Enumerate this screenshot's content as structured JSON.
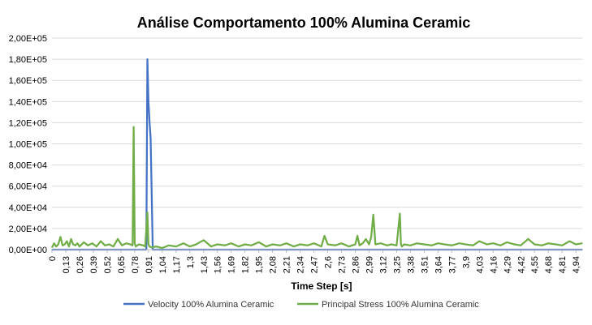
{
  "chart_data": {
    "type": "line",
    "title": "Análise Comportamento 100% Alumina Ceramic",
    "xlabel": "Time Step [s]",
    "ylabel": "",
    "ylim": [
      0,
      200000
    ],
    "xlim": [
      0,
      5.0
    ],
    "yticks": [
      "0,00E+00",
      "2,00E+04",
      "4,00E+04",
      "6,00E+04",
      "8,00E+04",
      "1,00E+05",
      "1,20E+05",
      "1,40E+05",
      "1,60E+05",
      "1,80E+05",
      "2,00E+05"
    ],
    "xticks": [
      "0",
      "0,13",
      "0,26",
      "0,39",
      "0,52",
      "0,65",
      "0,78",
      "0,91",
      "1,04",
      "1,17",
      "1,3",
      "1,43",
      "1,56",
      "1,69",
      "1,82",
      "1,95",
      "2,08",
      "2,21",
      "2,34",
      "2,47",
      "2,6",
      "2,73",
      "2,86",
      "2,99",
      "3,12",
      "3,25",
      "3,38",
      "3,51",
      "3,64",
      "3,77",
      "3,9",
      "4,03",
      "4,16",
      "4,29",
      "4,42",
      "4,55",
      "4,68",
      "4,81",
      "4,94"
    ],
    "grid": true,
    "legend": "bottom",
    "series": [
      {
        "name": "Velocity 100% Alumina Ceramic",
        "color": "#4472c4",
        "x": [
          0,
          0.88,
          0.89,
          0.9,
          0.91,
          0.92,
          0.93,
          0.95,
          1.0,
          2.0,
          3.0,
          4.0,
          5.0
        ],
        "values": [
          0,
          0,
          0,
          180000,
          140000,
          120000,
          105000,
          0,
          0,
          0,
          0,
          0,
          0
        ]
      },
      {
        "name": "Principal Stress 100% Alumina Ceramic",
        "color": "#70ad47",
        "x": [
          0,
          0.02,
          0.04,
          0.06,
          0.08,
          0.1,
          0.12,
          0.14,
          0.16,
          0.18,
          0.2,
          0.22,
          0.24,
          0.26,
          0.3,
          0.34,
          0.38,
          0.42,
          0.46,
          0.5,
          0.54,
          0.58,
          0.62,
          0.66,
          0.7,
          0.74,
          0.76,
          0.77,
          0.78,
          0.79,
          0.82,
          0.86,
          0.88,
          0.89,
          0.9,
          0.91,
          0.92,
          0.94,
          0.98,
          1.04,
          1.1,
          1.17,
          1.24,
          1.3,
          1.36,
          1.43,
          1.5,
          1.56,
          1.63,
          1.69,
          1.76,
          1.82,
          1.88,
          1.95,
          2.02,
          2.08,
          2.15,
          2.21,
          2.28,
          2.34,
          2.41,
          2.47,
          2.54,
          2.57,
          2.6,
          2.67,
          2.73,
          2.8,
          2.86,
          2.88,
          2.9,
          2.93,
          2.96,
          2.99,
          3.01,
          3.03,
          3.05,
          3.1,
          3.16,
          3.2,
          3.25,
          3.28,
          3.29,
          3.3,
          3.32,
          3.38,
          3.44,
          3.51,
          3.58,
          3.64,
          3.7,
          3.77,
          3.84,
          3.9,
          3.97,
          4.03,
          4.1,
          4.16,
          4.23,
          4.29,
          4.36,
          4.42,
          4.49,
          4.55,
          4.62,
          4.68,
          4.75,
          4.81,
          4.88,
          4.94,
          5.0
        ],
        "values": [
          2000,
          6000,
          3000,
          5000,
          12000,
          4000,
          5000,
          8000,
          3000,
          10000,
          5000,
          4000,
          6000,
          3000,
          7000,
          4000,
          6000,
          3000,
          8000,
          4000,
          5000,
          3000,
          10000,
          4000,
          6000,
          5000,
          4000,
          116000,
          6000,
          3000,
          5000,
          4000,
          3000,
          20000,
          35000,
          5000,
          3000,
          2000,
          3000,
          1500,
          4000,
          3000,
          6000,
          3000,
          5000,
          9000,
          3000,
          5000,
          4000,
          6000,
          3000,
          5000,
          4000,
          7000,
          3000,
          5000,
          4000,
          6000,
          3000,
          5000,
          4000,
          6000,
          3000,
          13000,
          5000,
          4000,
          6000,
          3000,
          5000,
          13000,
          4000,
          6000,
          10000,
          5000,
          12000,
          33000,
          5000,
          6000,
          4000,
          5000,
          4000,
          34000,
          5000,
          3000,
          5000,
          4000,
          6000,
          5000,
          4000,
          6000,
          5000,
          4000,
          6000,
          5000,
          4000,
          8000,
          5000,
          6000,
          4000,
          7000,
          5000,
          4000,
          10000,
          5000,
          4000,
          6000,
          5000,
          4000,
          8000,
          5000,
          6000
        ]
      }
    ]
  }
}
